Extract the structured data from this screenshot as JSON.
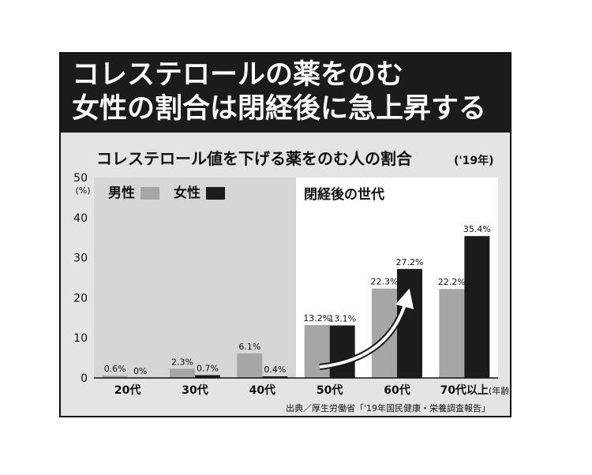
{
  "headline": {
    "line1": "コレステロールの薬をのむ",
    "line2": "女性の割合は閉経後に急上昇する"
  },
  "chart_data": {
    "type": "bar",
    "title": "コレステロール値を下げる薬をのむ人の割合",
    "title_note": "('19年)",
    "y_unit": "(%)",
    "ylim": [
      0,
      50
    ],
    "yticks": [
      0,
      10,
      20,
      30,
      40,
      50
    ],
    "x_unit": "(年齢)",
    "categories": [
      "20代",
      "30代",
      "40代",
      "50代",
      "60代",
      "70代以上"
    ],
    "series": [
      {
        "name": "男性",
        "values": [
          0.6,
          2.3,
          6.1,
          13.2,
          22.3,
          22.2
        ],
        "labels": [
          "0.6%",
          "2.3%",
          "6.1%",
          "13.2%",
          "22.3%",
          "22.2%"
        ],
        "color": "#a6a6a6"
      },
      {
        "name": "女性",
        "values": [
          0,
          0.7,
          0.4,
          13.1,
          27.2,
          35.4
        ],
        "labels": [
          "0%",
          "0.7%",
          "0.4%",
          "13.1%",
          "27.2%",
          "35.4%"
        ],
        "color": "#1c1a1a"
      }
    ],
    "highlight_label": "閉経後の世代",
    "legend_position": "top-left",
    "grid": false,
    "source": "出典／厚生労働省「'19年国民健康・栄養調査報告」"
  }
}
